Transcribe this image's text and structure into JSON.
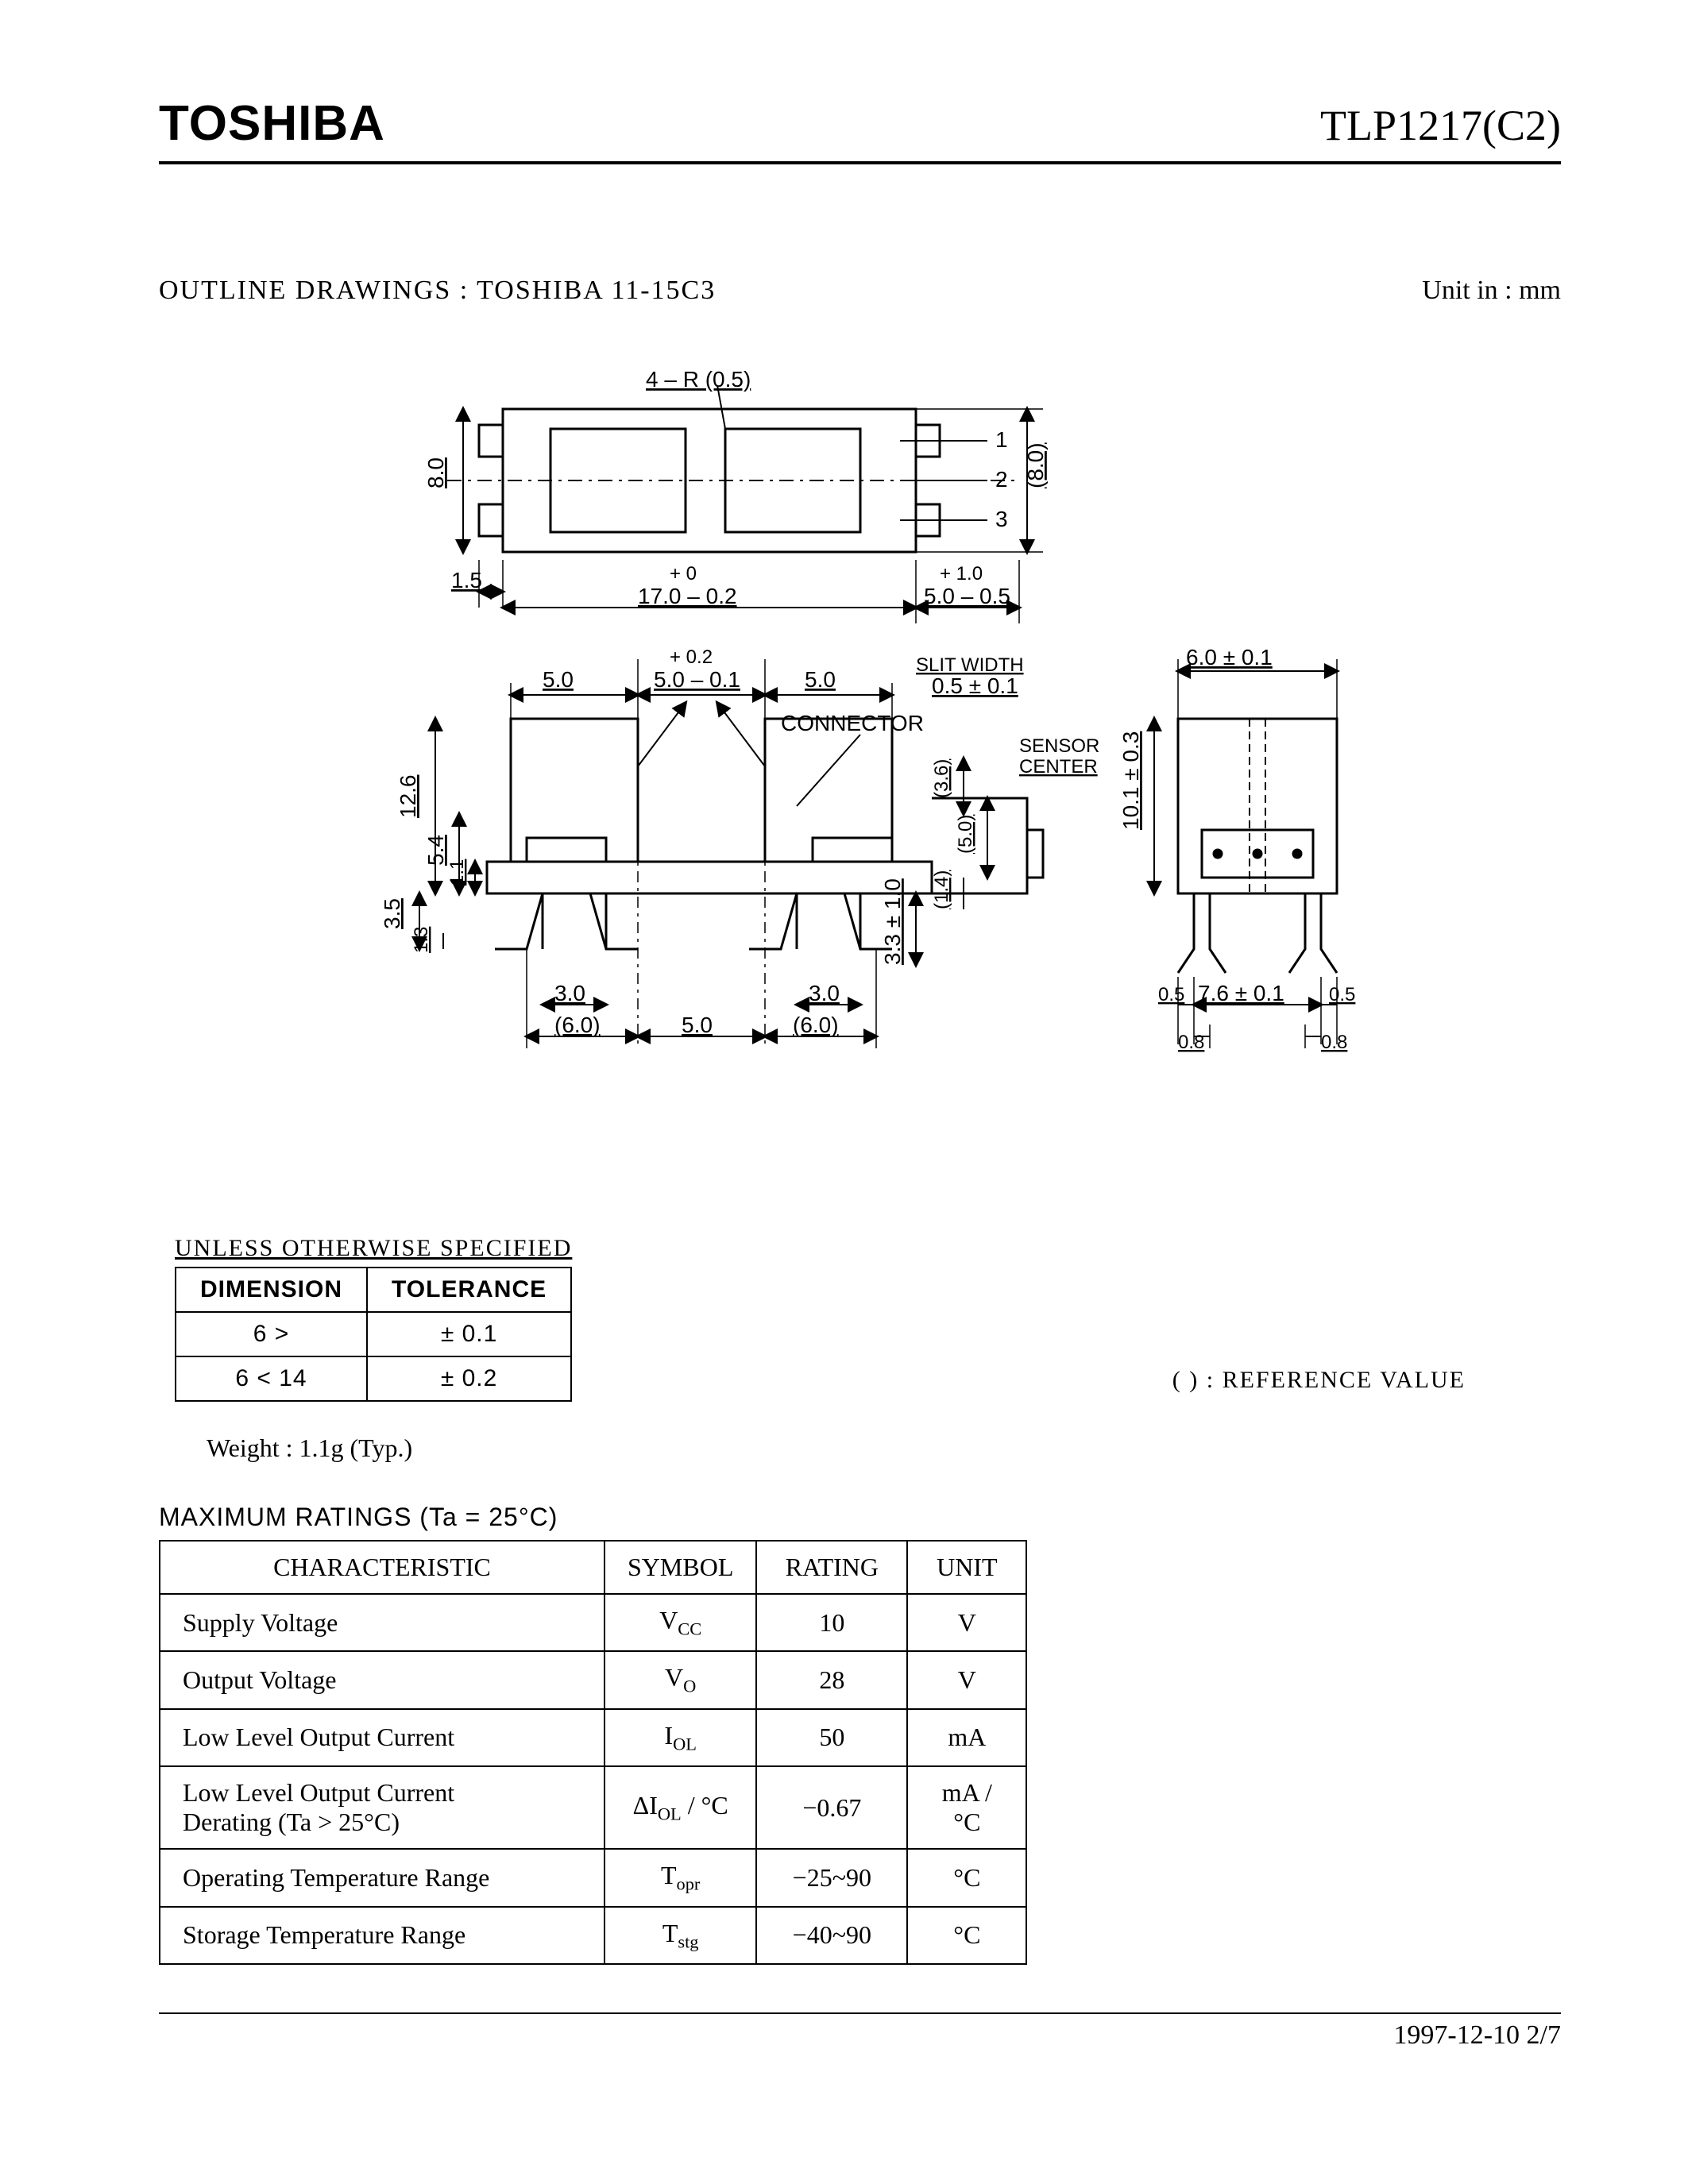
{
  "header": {
    "brand": "TOSHIBA",
    "part": "TLP1217(C2)"
  },
  "outline": {
    "label": "OUTLINE  DRAWINGS  :  TOSHIBA    11-15C3",
    "unit": "Unit in : mm"
  },
  "dims": {
    "top_r": "4 – R (0.5)",
    "d8_0": "8.0",
    "d8_0p": "(8.0)",
    "d1_5": "1.5",
    "d17_tol_top": "+ 0",
    "d17_tol_bot": "17.0 – 0.2",
    "d5_tol_top": "+ 1.0",
    "d5_tol_bot": "5.0 – 0.5",
    "pins": [
      "1",
      "2",
      "3"
    ],
    "d5_0": "5.0",
    "d5p_top": "+ 0.2",
    "d5p_bot": "5.0 – 0.1",
    "d6_01": "6.0 ± 0.1",
    "slit": "SLIT  WIDTH",
    "slit_val": "0.5 ± 0.1",
    "connector": "CONNECTOR",
    "sensor": "SENSOR",
    "center": "CENTER",
    "d12_6": "12.6",
    "d5_4": "5.4",
    "d1_1": "1.1",
    "d3_5": "3.5",
    "d1_3": "1.3",
    "d3_0": "3.0",
    "d6_0p": "(6.0)",
    "d3_6": "(3.6)",
    "d5_0p": "(5.0)",
    "d1_4p": "(1.4)",
    "d3_3": "3.3 ± 1.0",
    "d10_1": "10.1 ± 0.3",
    "d0_5": "0.5",
    "d7_6": "7.6 ± 0.1",
    "d0_8": "0.8"
  },
  "tolerance": {
    "title": "UNLESS  OTHERWISE  SPECIFIED",
    "columns": [
      "DIMENSION",
      "TOLERANCE"
    ],
    "rows": [
      [
        "6 >",
        "± 0.1"
      ],
      [
        "6 < 14",
        "± 0.2"
      ]
    ],
    "ref": "(   )  : REFERENCE  VALUE"
  },
  "weight": "Weight : 1.1g (Typ.)",
  "ratings": {
    "title": "MAXIMUM  RATINGS  (Ta = 25°C)",
    "columns": [
      "CHARACTERISTIC",
      "SYMBOL",
      "RATING",
      "UNIT"
    ],
    "rows": [
      {
        "char": "Supply Voltage",
        "sym": "V<CC>",
        "rat": "10",
        "unit": "V"
      },
      {
        "char": "Output Voltage",
        "sym": "V<O>",
        "rat": "28",
        "unit": "V"
      },
      {
        "char": "Low Level Output Current",
        "sym": "I<OL>",
        "rat": "50",
        "unit": "mA"
      },
      {
        "char": "Low Level Output Current\nDerating (Ta > 25°C)",
        "sym": "ΔI<OL> / °C",
        "rat": "−0.67",
        "unit": "mA / °C"
      },
      {
        "char": "Operating Temperature Range",
        "sym": "T<opr>",
        "rat": "−25~90",
        "unit": "°C"
      },
      {
        "char": "Storage Temperature Range",
        "sym": "T<stg>",
        "rat": "−40~90",
        "unit": "°C"
      }
    ]
  },
  "footer": "1997-12-10   2/7"
}
